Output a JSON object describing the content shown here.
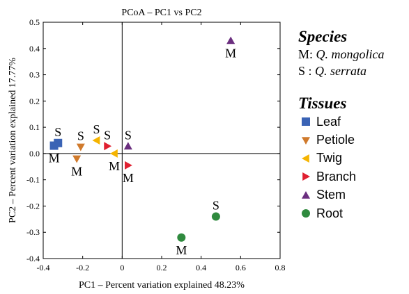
{
  "chart_data": {
    "type": "scatter",
    "title": "PCoA – PC1 vs PC2",
    "xlabel": "PC1 – Percent variation explained 48.23%",
    "ylabel": "PC2 – Percent variation explained 17.77%",
    "xlim": [
      -0.4,
      0.8
    ],
    "ylim": [
      -0.4,
      0.5
    ],
    "xticks": [
      -0.4,
      -0.2,
      0,
      0.2,
      0.4,
      0.6,
      0.8
    ],
    "xtick_labels": [
      "-0.4",
      "-0.2",
      "0",
      "0.2",
      "0.4",
      "0.6",
      "0.8"
    ],
    "yticks": [
      -0.4,
      -0.3,
      -0.2,
      -0.1,
      0.0,
      0.1,
      0.2,
      0.3,
      0.4,
      0.5
    ],
    "ytick_labels": [
      "-0.4",
      "-0.3",
      "-0.2",
      "-0.1",
      "0.0",
      "0.1",
      "0.2",
      "0.3",
      "0.4",
      "0.5"
    ],
    "grid": false,
    "zero_lines": true,
    "legend_position": "right",
    "series": [
      {
        "name": "Leaf",
        "marker": "square",
        "color": "#3a63b5",
        "points": [
          {
            "label": "S",
            "x": -0.325,
            "y": 0.04
          },
          {
            "label": "M",
            "x": -0.345,
            "y": 0.03
          }
        ]
      },
      {
        "name": "Petiole",
        "marker": "triangle-down",
        "color": "#d07a2c",
        "points": [
          {
            "label": "S",
            "x": -0.21,
            "y": 0.025
          },
          {
            "label": "M",
            "x": -0.23,
            "y": -0.02
          }
        ]
      },
      {
        "name": "Twig",
        "marker": "triangle-left",
        "color": "#f5b400",
        "points": [
          {
            "label": "S",
            "x": -0.13,
            "y": 0.05
          },
          {
            "label": "M",
            "x": -0.04,
            "y": 0.0
          }
        ]
      },
      {
        "name": "Branch",
        "marker": "triangle-right",
        "color": "#e02030",
        "points": [
          {
            "label": "S",
            "x": -0.075,
            "y": 0.028
          },
          {
            "label": "M",
            "x": 0.03,
            "y": -0.045
          }
        ]
      },
      {
        "name": "Stem",
        "marker": "triangle-up",
        "color": "#6b2f7f",
        "points": [
          {
            "label": "S",
            "x": 0.03,
            "y": 0.028
          },
          {
            "label": "M",
            "x": 0.55,
            "y": 0.43
          }
        ]
      },
      {
        "name": "Root",
        "marker": "circle",
        "color": "#2f8a3e",
        "points": [
          {
            "label": "S",
            "x": 0.475,
            "y": -0.24
          },
          {
            "label": "M",
            "x": 0.3,
            "y": -0.32
          }
        ]
      }
    ]
  },
  "legend": {
    "species_title": "Species",
    "species": [
      {
        "code": "M:",
        "name": "Q. mongolica"
      },
      {
        "code": "S :",
        "name": "Q. serrata"
      }
    ],
    "tissues_title": "Tissues"
  }
}
